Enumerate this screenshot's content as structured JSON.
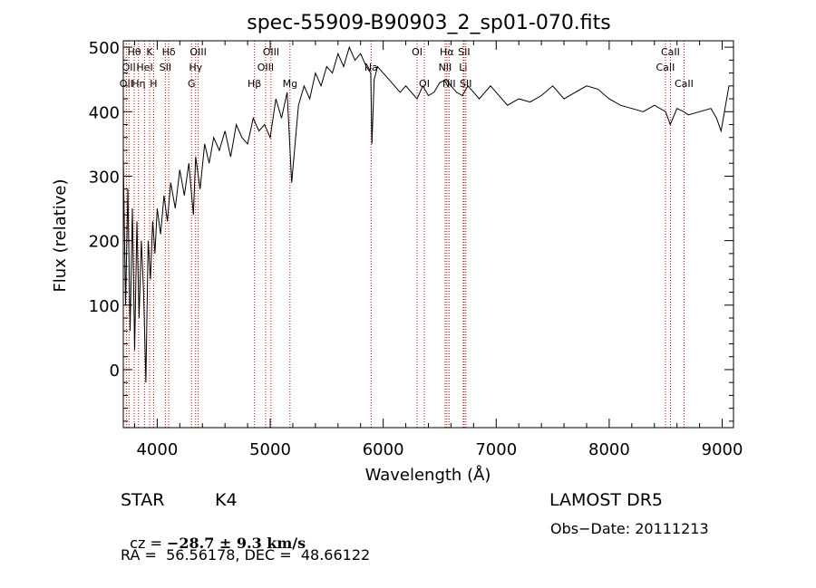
{
  "chart_data": {
    "type": "line",
    "title": "spec-55909-B90903_2_sp01-070.fits",
    "xlabel": "Wavelength (Å)",
    "ylabel": "Flux (relative)",
    "xlim": [
      3700,
      9100
    ],
    "ylim": [
      -90,
      510
    ],
    "xticks": [
      4000,
      5000,
      6000,
      7000,
      8000,
      9000
    ],
    "yticks": [
      0,
      100,
      200,
      300,
      400,
      500
    ],
    "grid": false,
    "line_color": "#000000",
    "marker_color": "#cc0000",
    "series": [
      {
        "x": [
          3700,
          3720,
          3740,
          3760,
          3780,
          3800,
          3820,
          3840,
          3860,
          3880,
          3900,
          3920,
          3940,
          3960,
          3980,
          4000,
          4030,
          4060,
          4090,
          4120,
          4160,
          4200,
          4240,
          4280,
          4320,
          4340,
          4380,
          4420,
          4460,
          4500,
          4550,
          4600,
          4650,
          4700,
          4750,
          4800,
          4850,
          4900,
          4950,
          5000,
          5050,
          5100,
          5150,
          5190,
          5250,
          5300,
          5350,
          5400,
          5450,
          5500,
          5550,
          5600,
          5650,
          5700,
          5750,
          5800,
          5850,
          5890,
          5900,
          5920,
          5950,
          6000,
          6050,
          6100,
          6150,
          6200,
          6250,
          6300,
          6350,
          6400,
          6450,
          6500,
          6560,
          6600,
          6650,
          6700,
          6750,
          6800,
          6850,
          6900,
          6950,
          7000,
          7100,
          7200,
          7300,
          7400,
          7500,
          7600,
          7700,
          7800,
          7900,
          8000,
          8100,
          8200,
          8300,
          8400,
          8500,
          8540,
          8600,
          8660,
          8700,
          8800,
          8900,
          8950,
          8990,
          9020,
          9040,
          9060
        ],
        "y": [
          330,
          100,
          280,
          60,
          250,
          30,
          230,
          80,
          200,
          120,
          -20,
          200,
          140,
          230,
          180,
          250,
          210,
          270,
          230,
          290,
          250,
          310,
          270,
          320,
          240,
          330,
          280,
          350,
          320,
          360,
          340,
          370,
          330,
          380,
          360,
          350,
          390,
          370,
          380,
          360,
          420,
          390,
          430,
          290,
          410,
          440,
          420,
          460,
          440,
          470,
          460,
          490,
          470,
          500,
          480,
          490,
          470,
          460,
          350,
          450,
          470,
          460,
          450,
          440,
          430,
          440,
          430,
          420,
          440,
          425,
          430,
          445,
          450,
          440,
          430,
          425,
          440,
          430,
          420,
          430,
          440,
          430,
          410,
          420,
          415,
          425,
          440,
          420,
          430,
          440,
          435,
          420,
          410,
          405,
          400,
          410,
          400,
          380,
          405,
          400,
          395,
          400,
          405,
          390,
          370,
          400,
          420,
          440
        ]
      }
    ],
    "line_markers": [
      {
        "wavelength": 3727,
        "label": "OII",
        "row": 3
      },
      {
        "wavelength": 3750,
        "label": "OII",
        "row": 2
      },
      {
        "wavelength": 3797,
        "label": "Hθ",
        "row": 1
      },
      {
        "wavelength": 3835,
        "label": "Hη",
        "row": 3
      },
      {
        "wavelength": 3889,
        "label": "HeI",
        "row": 2
      },
      {
        "wavelength": 3933,
        "label": "K",
        "row": 1
      },
      {
        "wavelength": 3968,
        "label": "H",
        "row": 3
      },
      {
        "wavelength": 4072,
        "label": "SII",
        "row": 2
      },
      {
        "wavelength": 4102,
        "label": "Hδ",
        "row": 1
      },
      {
        "wavelength": 4304,
        "label": "G",
        "row": 3
      },
      {
        "wavelength": 4340,
        "label": "Hγ",
        "row": 2
      },
      {
        "wavelength": 4363,
        "label": "OIII",
        "row": 1
      },
      {
        "wavelength": 4861,
        "label": "Hβ",
        "row": 3
      },
      {
        "wavelength": 4959,
        "label": "OIII",
        "row": 2
      },
      {
        "wavelength": 5007,
        "label": "OIII",
        "row": 1
      },
      {
        "wavelength": 5175,
        "label": "Mg",
        "row": 3
      },
      {
        "wavelength": 5893,
        "label": "Na",
        "row": 2
      },
      {
        "wavelength": 6300,
        "label": "OI",
        "row": 1
      },
      {
        "wavelength": 6364,
        "label": "OI",
        "row": 3
      },
      {
        "wavelength": 6548,
        "label": "NII",
        "row": 2
      },
      {
        "wavelength": 6563,
        "label": "Hα",
        "row": 1
      },
      {
        "wavelength": 6583,
        "label": "NII",
        "row": 3
      },
      {
        "wavelength": 6708,
        "label": "Li",
        "row": 2
      },
      {
        "wavelength": 6716,
        "label": "SII",
        "row": 1
      },
      {
        "wavelength": 6731,
        "label": "SII",
        "row": 3
      },
      {
        "wavelength": 8498,
        "label": "CaII",
        "row": 2
      },
      {
        "wavelength": 8542,
        "label": "CaII",
        "row": 1
      },
      {
        "wavelength": 8662,
        "label": "CaII",
        "row": 3
      }
    ]
  },
  "info": {
    "class_label": "STAR",
    "subclass_label": "K4",
    "survey_label": "LAMOST DR5",
    "cz_prefix": "cz = ",
    "cz_value": "−28.7 ± 9.3 km/s",
    "obs_date": "Obs−Date: 20111213",
    "radec": "RA =  56.56178, DEC =  48.66122"
  }
}
